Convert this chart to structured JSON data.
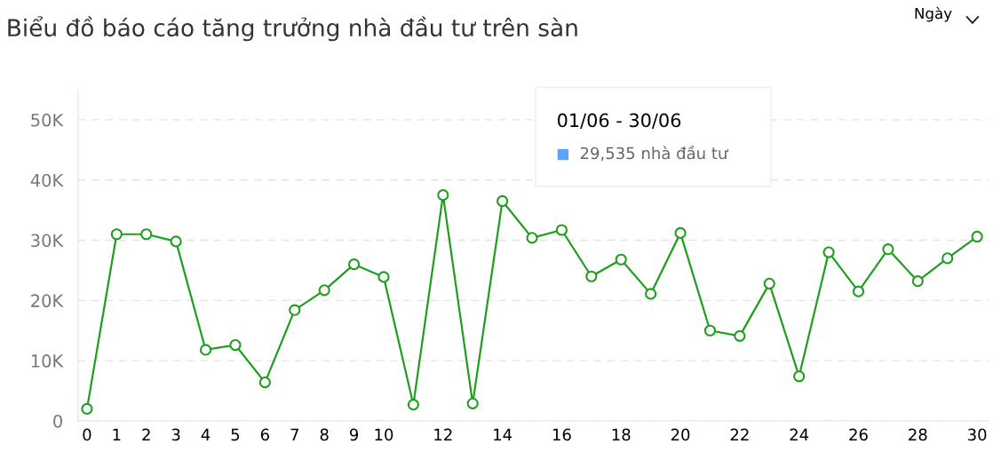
{
  "chart_data": {
    "type": "line",
    "title": "Biểu đồ báo cáo tăng trưởng nhà đầu tư trên sàn",
    "categories": [
      "0",
      "1",
      "2",
      "3",
      "4",
      "5",
      "6",
      "7",
      "8",
      "9",
      "10",
      null,
      "12",
      null,
      "14",
      null,
      "16",
      null,
      "18",
      null,
      "20",
      null,
      "22",
      null,
      "24",
      null,
      "26",
      null,
      "28",
      null,
      "30"
    ],
    "series": [
      {
        "color": "#1f9e1f",
        "values": [
          2000,
          31000,
          31000,
          29800,
          11800,
          12600,
          6400,
          18400,
          21700,
          26000,
          23900,
          2700,
          37500,
          2900,
          36500,
          30400,
          31700,
          24000,
          26800,
          21100,
          31200,
          15000,
          14100,
          22800,
          7400,
          28000,
          21500,
          28500,
          23200,
          27000,
          30600
        ]
      }
    ],
    "ylim": [
      0,
      55000
    ],
    "yticks": [
      0,
      {
        "value": 10000,
        "label": "10K"
      },
      {
        "value": 20000,
        "label": "20K"
      },
      {
        "value": 30000,
        "label": "30K"
      },
      {
        "value": 40000,
        "label": "40K"
      },
      {
        "value": 50000,
        "label": "50K"
      }
    ],
    "grid": "y",
    "marker": "circle",
    "line_style": "solid",
    "annotations": [
      "Ngày",
      "01/06 - 30/06",
      "29,535 nhà đầu tư"
    ]
  }
}
